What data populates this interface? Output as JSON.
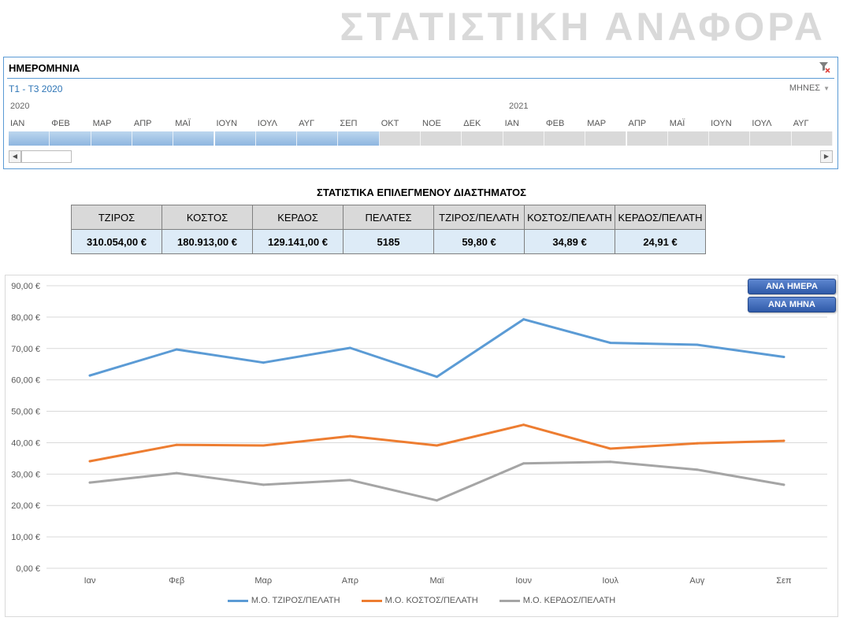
{
  "report_title": "ΣΤΑΤΙΣΤΙΚΗ ΑΝΑΦΟΡΑ",
  "timeline": {
    "header": "ΗΜΕΡΟΜΗΝΙΑ",
    "filter_icon": "clear-filter-icon",
    "range_label": "Τ1 - Τ3 2020",
    "level_label": "ΜΗΝΕΣ",
    "years": [
      "2020",
      "2021"
    ],
    "months": [
      "ΙΑΝ",
      "ΦΕΒ",
      "ΜΑΡ",
      "ΑΠΡ",
      "ΜΑΪ",
      "ΙΟΥΝ",
      "ΙΟΥΛ",
      "ΑΥΓ",
      "ΣΕΠ",
      "ΟΚΤ",
      "ΝΟΕ",
      "ΔΕΚ",
      "ΙΑΝ",
      "ΦΕΒ",
      "ΜΑΡ",
      "ΑΠΡ",
      "ΜΑΪ",
      "ΙΟΥΝ",
      "ΙΟΥΛ",
      "ΑΥΓ"
    ],
    "selected_count": 9,
    "colors": {
      "border": "#5b9bd5",
      "selected": "#8eb6e0",
      "unselected": "#d9d9d9"
    }
  },
  "stats": {
    "title": "ΣΤΑΤΙΣΤΙΚΑ ΕΠΙΛΕΓΜΕΝΟΥ ΔΙΑΣΤΗΜΑΤΟΣ",
    "headers": [
      "ΤΖΙΡΟΣ",
      "ΚΟΣΤΟΣ",
      "ΚΕΡΔΟΣ",
      "ΠΕΛΑΤΕΣ",
      "ΤΖΙΡΟΣ/ΠΕΛΑΤΗ",
      "ΚΟΣΤΟΣ/ΠΕΛΑΤΗ",
      "ΚΕΡΔΟΣ/ΠΕΛΑΤΗ"
    ],
    "values": [
      "310.054,00 €",
      "180.913,00 €",
      "129.141,00 €",
      "5185",
      "59,80 €",
      "34,89 €",
      "24,91 €"
    ]
  },
  "buttons": {
    "per_day": "ΑΝΑ ΗΜΕΡΑ",
    "per_month": "ΑΝΑ ΜΗΝΑ"
  },
  "chart_data": {
    "type": "line",
    "categories": [
      "Ιαν",
      "Φεβ",
      "Μαρ",
      "Απρ",
      "Μαϊ",
      "Ιουν",
      "Ιουλ",
      "Αυγ",
      "Σεπ"
    ],
    "series": [
      {
        "name": "Μ.Ο. ΤΖΙΡΟΣ/ΠΕΛΑΤΗ",
        "color": "#5b9bd5",
        "values": [
          61.4,
          69.7,
          65.5,
          70.2,
          61.0,
          79.3,
          71.8,
          71.2,
          67.3
        ]
      },
      {
        "name": "Μ.Ο. ΚΟΣΤΟΣ/ΠΕΛΑΤΗ",
        "color": "#ed7d31",
        "values": [
          34.1,
          39.3,
          39.1,
          42.1,
          39.1,
          45.7,
          38.1,
          39.8,
          40.6
        ]
      },
      {
        "name": "Μ.Ο. ΚΕΡΔΟΣ/ΠΕΛΑΤΗ",
        "color": "#a5a5a5",
        "values": [
          27.3,
          30.3,
          26.6,
          28.1,
          21.6,
          33.4,
          33.9,
          31.4,
          26.6
        ]
      }
    ],
    "ylim": [
      0,
      90
    ],
    "yticks": [
      "0,00 €",
      "10,00 €",
      "20,00 €",
      "30,00 €",
      "40,00 €",
      "50,00 €",
      "60,00 €",
      "70,00 €",
      "80,00 €",
      "90,00 €"
    ],
    "grid": true,
    "legend": "bottom"
  }
}
